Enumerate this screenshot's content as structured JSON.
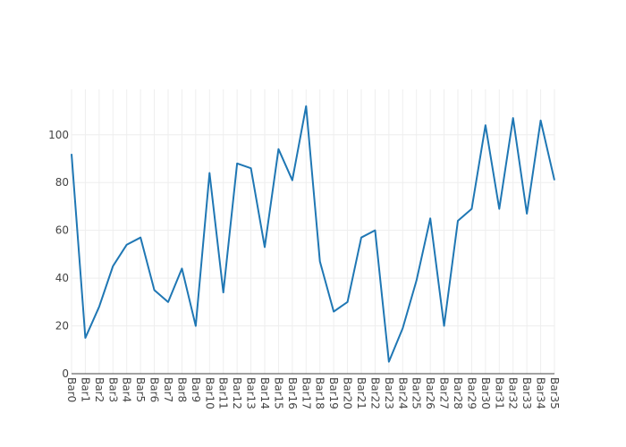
{
  "chart_data": {
    "type": "line",
    "title": "",
    "xlabel": "",
    "ylabel": "",
    "categories": [
      "Bar0",
      "Bar1",
      "Bar2",
      "Bar3",
      "Bar4",
      "Bar5",
      "Bar6",
      "Bar7",
      "Bar8",
      "Bar9",
      "Bar10",
      "Bar11",
      "Bar12",
      "Bar13",
      "Bar14",
      "Bar15",
      "Bar16",
      "Bar17",
      "Bar18",
      "Bar19",
      "Bar20",
      "Bar21",
      "Bar22",
      "Bar23",
      "Bar24",
      "Bar25",
      "Bar26",
      "Bar27",
      "Bar28",
      "Bar29",
      "Bar30",
      "Bar31",
      "Bar32",
      "Bar33",
      "Bar34",
      "Bar35"
    ],
    "series": [
      {
        "color": "#1f77b4",
        "values": [
          92,
          15,
          28,
          45,
          54,
          57,
          35,
          30,
          44,
          20,
          84,
          34,
          88,
          86,
          53,
          94,
          81,
          112,
          47,
          26,
          30,
          57,
          60,
          5,
          19,
          39,
          65,
          20,
          64,
          69,
          104,
          69,
          107,
          67,
          106,
          81
        ]
      }
    ],
    "ylim": [
      0,
      119
    ],
    "yticks": [
      0,
      20,
      40,
      60,
      80,
      100
    ],
    "grid": true,
    "legend": "none"
  }
}
